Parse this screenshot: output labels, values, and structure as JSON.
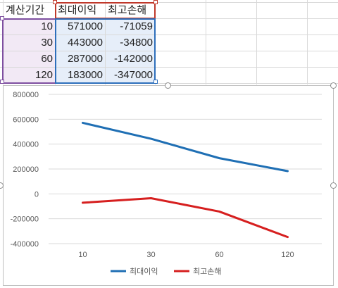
{
  "table": {
    "headers": [
      "계산기간",
      "최대이익",
      "최고손해"
    ],
    "rows": [
      [
        "10",
        "571000",
        "-71059"
      ],
      [
        "30",
        "443000",
        "-34800"
      ],
      [
        "60",
        "287000",
        "-142000"
      ],
      [
        "120",
        "183000",
        "-347000"
      ]
    ]
  },
  "colors": {
    "series_max_profit": "#1f6fb4",
    "series_max_loss": "#d61f1f",
    "selection_purple": "#7e4fa0",
    "selection_red": "#c0392b",
    "selection_blue": "#2e6fbb"
  },
  "chart_data": {
    "type": "line",
    "categories": [
      "10",
      "30",
      "60",
      "120"
    ],
    "series": [
      {
        "name": "최대이익",
        "values": [
          571000,
          443000,
          287000,
          183000
        ],
        "color": "#1f6fb4"
      },
      {
        "name": "최고손해",
        "values": [
          -71059,
          -34800,
          -142000,
          -347000
        ],
        "color": "#d61f1f"
      }
    ],
    "ylim": [
      -400000,
      800000
    ],
    "yticks": [
      "800000",
      "600000",
      "400000",
      "200000",
      "0",
      "-200000",
      "-400000"
    ],
    "grid": true,
    "legend_position": "bottom"
  }
}
